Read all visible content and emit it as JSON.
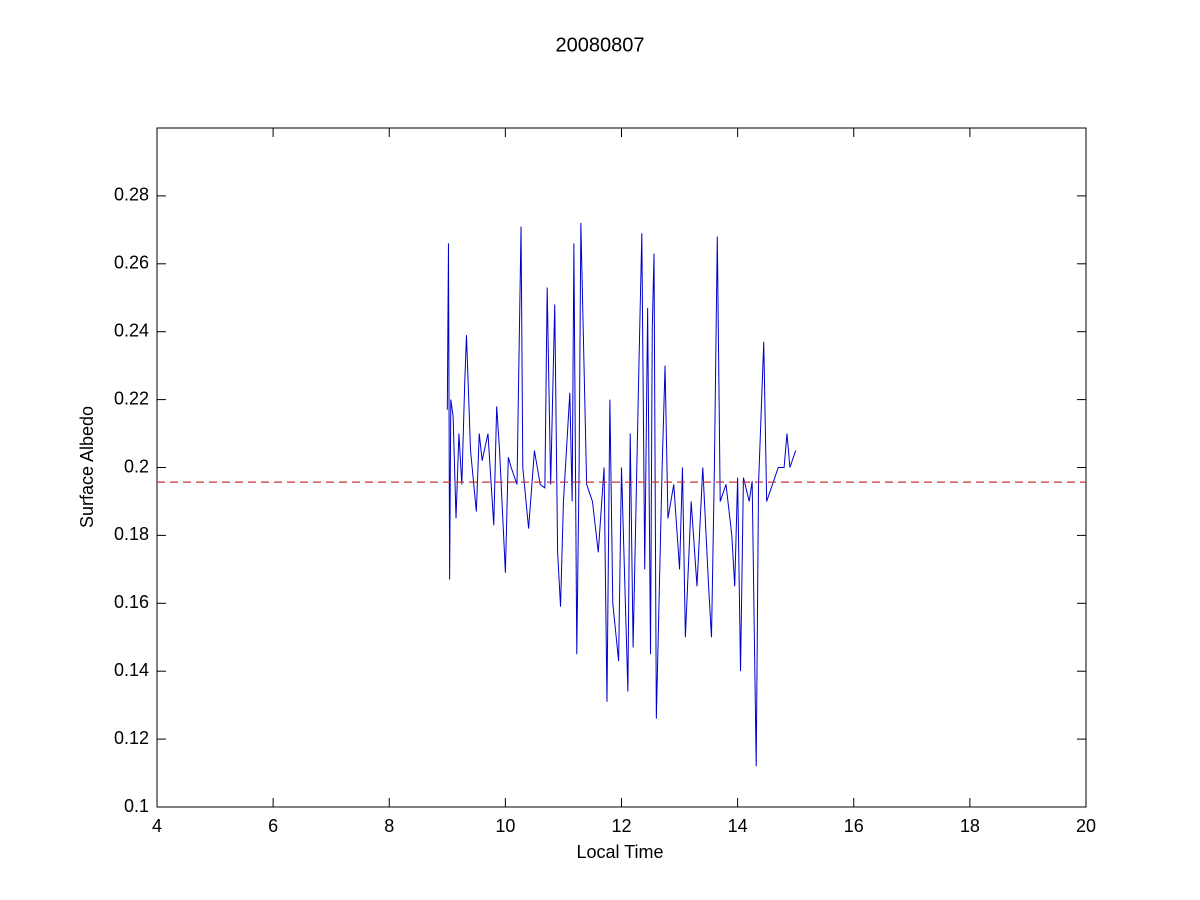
{
  "chart_data": {
    "type": "line",
    "title": "20080807",
    "xlabel": "Local Time",
    "ylabel": "Surface Albedo",
    "color": "#0000cc",
    "x": [
      9.0,
      9.02,
      9.04,
      9.06,
      9.1,
      9.15,
      9.2,
      9.25,
      9.3,
      9.33,
      9.4,
      9.5,
      9.55,
      9.6,
      9.7,
      9.8,
      9.85,
      9.9,
      10.0,
      10.05,
      10.1,
      10.2,
      10.27,
      10.3,
      10.4,
      10.5,
      10.6,
      10.68,
      10.72,
      10.78,
      10.85,
      10.9,
      10.95,
      11.0,
      11.11,
      11.15,
      11.18,
      11.23,
      11.27,
      11.3,
      11.4,
      11.5,
      11.6,
      11.7,
      11.75,
      11.8,
      11.85,
      11.95,
      12.0,
      12.11,
      12.15,
      12.2,
      12.3,
      12.35,
      12.4,
      12.45,
      12.5,
      12.53,
      12.56,
      12.6,
      12.7,
      12.75,
      12.8,
      12.9,
      13.0,
      13.05,
      13.1,
      13.2,
      13.3,
      13.4,
      13.5,
      13.55,
      13.6,
      13.65,
      13.7,
      13.8,
      13.9,
      13.95,
      14.0,
      14.05,
      14.1,
      14.2,
      14.25,
      14.32,
      14.36,
      14.45,
      14.5,
      14.6,
      14.7,
      14.8,
      14.85,
      14.9,
      15.0
    ],
    "values": [
      0.217,
      0.266,
      0.167,
      0.22,
      0.215,
      0.185,
      0.21,
      0.195,
      0.225,
      0.239,
      0.205,
      0.187,
      0.21,
      0.202,
      0.21,
      0.183,
      0.218,
      0.205,
      0.169,
      0.203,
      0.2,
      0.195,
      0.271,
      0.2,
      0.182,
      0.205,
      0.195,
      0.194,
      0.253,
      0.195,
      0.248,
      0.175,
      0.159,
      0.19,
      0.222,
      0.19,
      0.266,
      0.145,
      0.2,
      0.272,
      0.195,
      0.19,
      0.175,
      0.2,
      0.131,
      0.22,
      0.16,
      0.143,
      0.2,
      0.134,
      0.21,
      0.147,
      0.23,
      0.269,
      0.17,
      0.247,
      0.145,
      0.241,
      0.263,
      0.126,
      0.2,
      0.23,
      0.185,
      0.195,
      0.17,
      0.2,
      0.15,
      0.19,
      0.165,
      0.2,
      0.165,
      0.15,
      0.2,
      0.268,
      0.19,
      0.195,
      0.18,
      0.165,
      0.197,
      0.14,
      0.197,
      0.19,
      0.196,
      0.112,
      0.195,
      0.237,
      0.19,
      0.195,
      0.2,
      0.2,
      0.21,
      0.2,
      0.205
    ],
    "hline": {
      "y": 0.1957,
      "color": "#cc3333",
      "dashed": true
    },
    "xlim": [
      4,
      20
    ],
    "xticks": [
      4,
      6,
      8,
      10,
      12,
      14,
      16,
      18,
      20
    ],
    "ylim": [
      0.1,
      0.3
    ],
    "yticks": [
      0.1,
      0.12,
      0.14,
      0.16,
      0.18,
      0.2,
      0.22,
      0.24,
      0.26,
      0.28
    ],
    "grid": false
  }
}
